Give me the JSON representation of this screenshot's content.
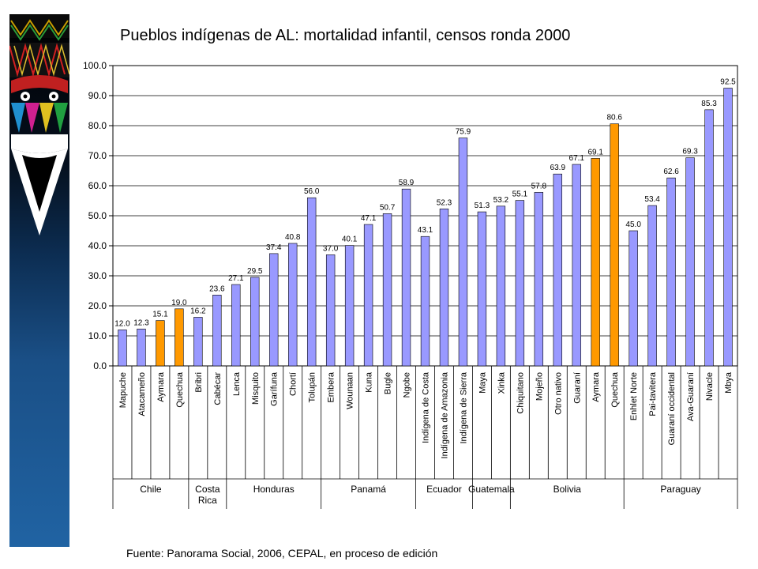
{
  "title": "Pueblos indígenas de AL: mortalidad infantil, censos ronda 2000",
  "footer": "Fuente: Panorama Social, 2006, CEPAL, en proceso de edición",
  "colors": {
    "bar_default": "#9999ff",
    "bar_highlight": "#ff9900",
    "axis": "#000000",
    "grid": "#000000",
    "plot_bg": "#ffffff"
  },
  "chart_data": {
    "type": "bar",
    "title": "Pueblos indígenas de AL: mortalidad infantil, censos ronda 2000",
    "xlabel": "",
    "ylabel": "",
    "ylim": [
      0,
      100
    ],
    "yticks": [
      "0.0",
      "10.0",
      "20.0",
      "30.0",
      "40.0",
      "50.0",
      "60.0",
      "70.0",
      "80.0",
      "90.0",
      "100.0"
    ],
    "grid": true,
    "categories": [
      "Mapuche",
      "Atacameño",
      "Aymara",
      "Quechua",
      "Bribri",
      "Cabécar",
      "Lenca",
      "Misquito",
      "Garífuna",
      "Chortí",
      "Tolupán",
      "Embera",
      "Wounaan",
      "Kuna",
      "Bugle",
      "Ngobe",
      "Indígena de Costa",
      "Indígena de Amazonia",
      "Indígena de Sierra",
      "Maya",
      "Xinka",
      "Chiquitano",
      "Mojeño",
      "Otro nativo",
      "Guaraní",
      "Aymara",
      "Quechua",
      "Enhlet Norte",
      "Pai-tavitera",
      "Guaraní occidental",
      "Ava-Guaraní",
      "Nivacle",
      "Mbya"
    ],
    "values": [
      12.0,
      12.3,
      15.1,
      19.0,
      16.2,
      23.6,
      27.1,
      29.5,
      37.4,
      40.8,
      56.0,
      37.0,
      40.1,
      47.1,
      50.7,
      58.9,
      43.1,
      52.3,
      75.9,
      51.3,
      53.2,
      55.1,
      57.8,
      63.9,
      67.1,
      69.1,
      80.6,
      45.0,
      53.4,
      62.6,
      69.3,
      85.3,
      92.5
    ],
    "value_labels": [
      "12.0",
      "12.3",
      "15.1",
      "19.0",
      "16.2",
      "23.6",
      "27.1",
      "29.5",
      "37.4",
      "40.8",
      "56.0",
      "37.0",
      "40.1",
      "47.1",
      "50.7",
      "58.9",
      "43.1",
      "52.3",
      "75.9",
      "51.3",
      "53.2",
      "55.1",
      "57.8",
      "63.9",
      "67.1",
      "69.1",
      "80.6",
      "45.0",
      "53.4",
      "62.6",
      "69.3",
      "85.3",
      "92.5"
    ],
    "highlighted": [
      2,
      3,
      25,
      26
    ],
    "groups": [
      {
        "label": [
          "Chile"
        ],
        "start": 0,
        "end": 3
      },
      {
        "label": [
          "Costa",
          "Rica"
        ],
        "start": 4,
        "end": 5
      },
      {
        "label": [
          "Honduras"
        ],
        "start": 6,
        "end": 10
      },
      {
        "label": [
          "Panamá"
        ],
        "start": 11,
        "end": 15
      },
      {
        "label": [
          "Ecuador"
        ],
        "start": 16,
        "end": 18
      },
      {
        "label": [
          "Guatemala"
        ],
        "start": 19,
        "end": 20
      },
      {
        "label": [
          "Bolivia"
        ],
        "start": 21,
        "end": 26
      },
      {
        "label": [
          "Paraguay"
        ],
        "start": 27,
        "end": 32
      }
    ]
  }
}
